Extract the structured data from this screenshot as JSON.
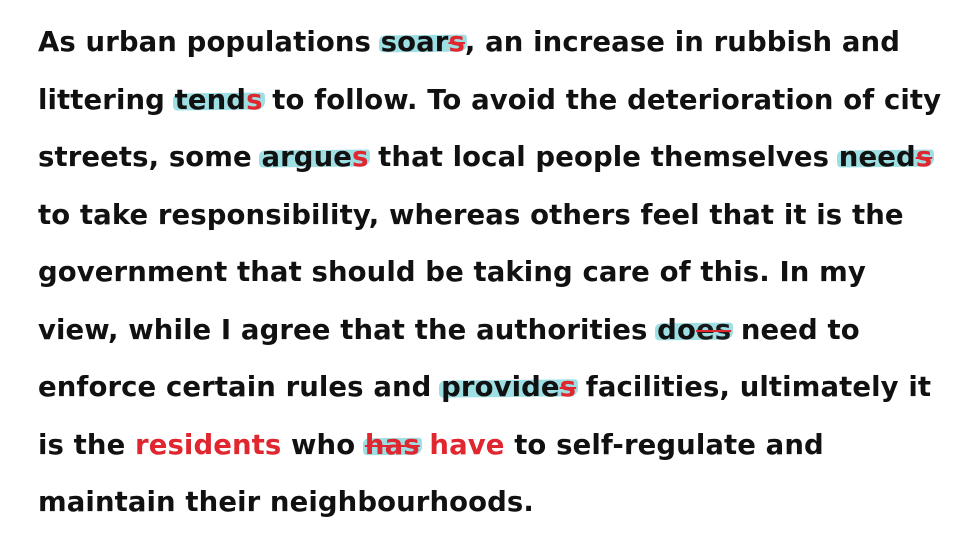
{
  "lines": [
    {
      "a": "As urban populations ",
      "w": "soar",
      "s": "s",
      "b": ", an increase in rubbish and"
    },
    {
      "a": "littering ",
      "w": "tend",
      "s": "s",
      "b": " to follow. To avoid the deterioration of city"
    },
    {
      "a": "streets, some ",
      "w": "argue",
      "s": "s",
      "b": " that local people themselves ",
      "w2": "need",
      "s2": "s"
    },
    {
      "a": "to take responsibility, whereas others feel that it is the"
    },
    {
      "a": "government that should be taking care of this. In my"
    },
    {
      "a": "view, while I agree that the authorities ",
      "w": "do",
      "s": "es",
      "b": " need to"
    },
    {
      "a": "enforce certain rules and ",
      "w": "provide",
      "s": "s",
      "b": " facilities, ultimately it"
    },
    {
      "a": "is the ",
      "red": "residents",
      "b": " who ",
      "struck": "has",
      "corr": " have",
      "c": " to self-regulate and"
    },
    {
      "a": "maintain their neighbourhoods."
    }
  ],
  "colors": {
    "text": "#111111",
    "correction_red": "#e0262f",
    "highlight_teal": "#4fc4ce"
  }
}
